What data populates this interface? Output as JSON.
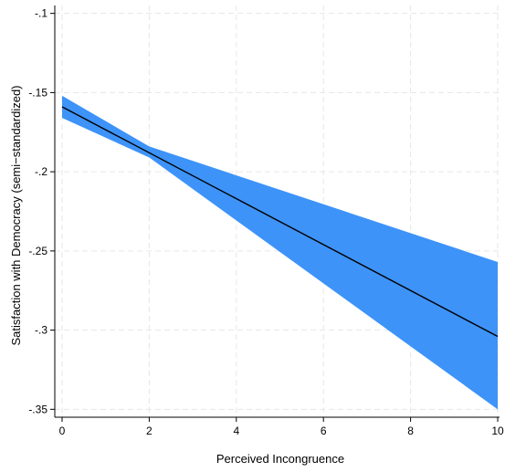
{
  "chart_data": {
    "type": "line",
    "xlabel": "Perceived Incongruence",
    "ylabel": "Satisfaction with Democracy (semi−standardized)",
    "xlim": [
      0,
      10
    ],
    "ylim": [
      -0.355,
      -0.095
    ],
    "x_ticks": [
      0,
      2,
      4,
      6,
      8,
      10
    ],
    "x_tick_labels": [
      "0",
      "2",
      "4",
      "6",
      "8",
      "10"
    ],
    "y_ticks": [
      -0.1,
      -0.15,
      -0.2,
      -0.25,
      -0.3,
      -0.35
    ],
    "y_tick_labels": [
      "-.1",
      "-.15",
      "-.2",
      "-.25",
      "-.3",
      "-.35"
    ],
    "grid": true,
    "series": [
      {
        "type": "line",
        "x": [
          0,
          10
        ],
        "y": [
          -0.159,
          -0.304
        ]
      },
      {
        "type": "area-band",
        "x": [
          0,
          2,
          10
        ],
        "upper": [
          -0.152,
          -0.184,
          -0.257
        ],
        "lower": [
          -0.166,
          -0.191,
          -0.35
        ]
      }
    ],
    "colors": {
      "band": "#3d93f8",
      "line": "#000000"
    }
  }
}
